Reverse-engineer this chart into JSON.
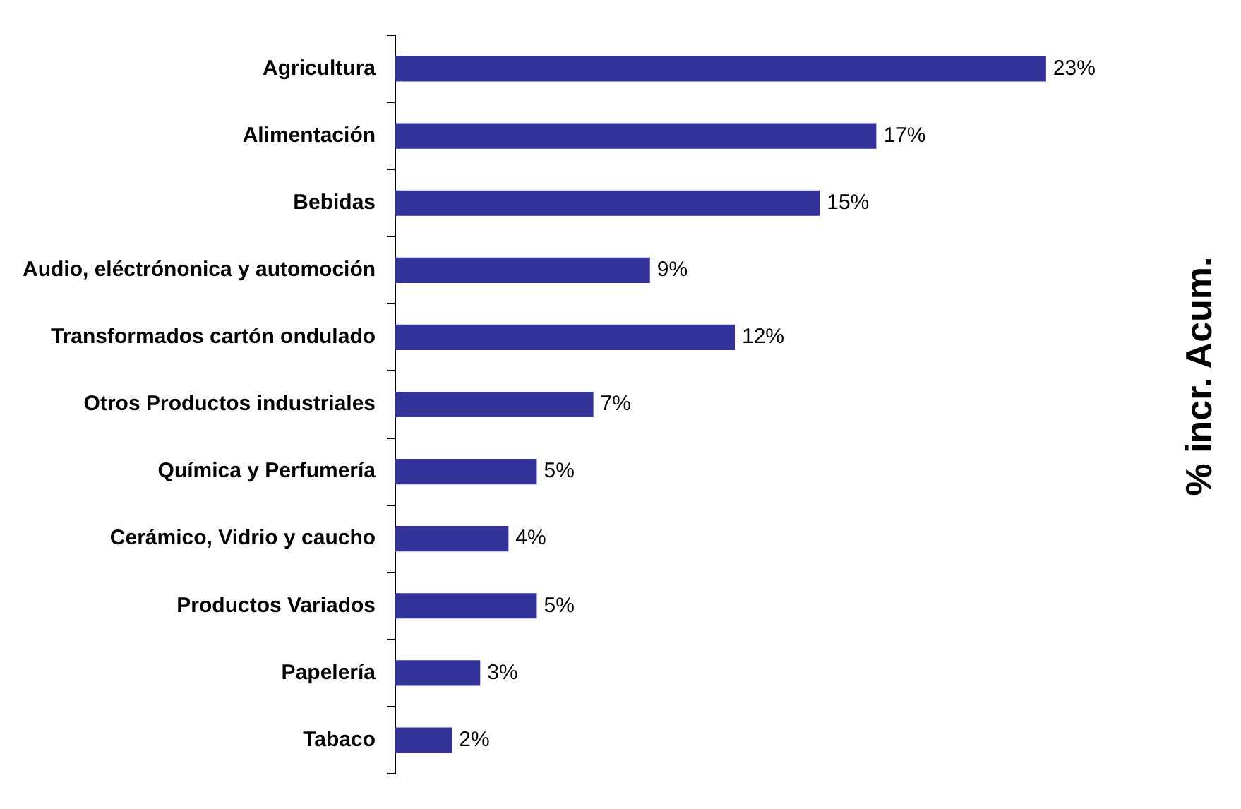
{
  "chart_data": {
    "type": "bar",
    "orientation": "horizontal",
    "color": "#333399",
    "categories": [
      "Agricultura",
      "Alimentación",
      "Bebidas",
      "Audio, eléctrónonica y automoción",
      "Transformados cartón ondulado",
      "Otros Productos industriales",
      "Química y Perfumería",
      "Cerámico, Vidrio y caucho",
      "Productos Variados",
      "Papelería",
      "Tabaco"
    ],
    "values": [
      23,
      17,
      15,
      9,
      12,
      7,
      5,
      4,
      5,
      3,
      2
    ],
    "value_labels": [
      "23%",
      "17%",
      "15%",
      "9%",
      "12%",
      "7%",
      "5%",
      "4%",
      "5%",
      "3%",
      "2%"
    ],
    "annotations": [
      "% incr. Acum."
    ],
    "legend": false
  }
}
